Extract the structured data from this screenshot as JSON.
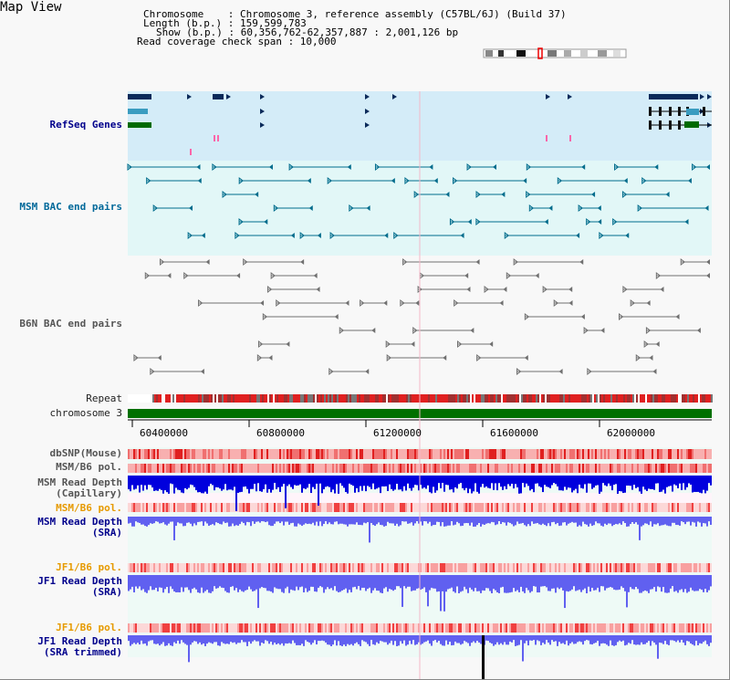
{
  "title": "Map View",
  "info": {
    "chromosome": "Chromosome    : Chromosome 3, reference assembly (C57BL/6J) (Build 37)",
    "length": "Length (b.p.) : 159,599,783",
    "show": "Show (b.p.) : 60,356,762-62,357,887 : 2,001,126 bp",
    "read_coverage": "Read coverage check span : 10,000"
  },
  "labels": {
    "refseq": "RefSeq Genes",
    "msm_bac": "MSM BAC end pairs",
    "b6n_bac": "B6N BAC end pairs",
    "repeat": "Repeat",
    "chromosome": "chromosome 3",
    "dbsnp": "dbSNP(Mouse)",
    "msm_b6_pol_1": "MSM/B6 pol.",
    "msm_read_depth_cap_1": "MSM Read Depth",
    "msm_read_depth_cap_2": "(Capillary)",
    "msm_b6_pol_2": "MSM/B6 pol.",
    "msm_read_depth_sra_1": "MSM Read Depth",
    "msm_read_depth_sra_2": "(SRA)",
    "jf1_b6_pol_1": "JF1/B6 pol.",
    "jf1_read_depth_1": "JF1 Read Depth",
    "jf1_read_depth_2": "(SRA)",
    "jf1_b6_pol_2": "JF1/B6 pol.",
    "jf1_read_depth_trim_1": "JF1 Read Depth",
    "jf1_read_depth_trim_2": "(SRA trimmed)"
  },
  "axis_ticks": [
    "60400000",
    "60800000",
    "61200000",
    "61600000",
    "62000000"
  ],
  "colors": {
    "refseq_bg": "#d4ecf8",
    "bac_bg": "#e2f7f7",
    "gene_dark": "#0a2a5a",
    "gene_teal": "#3a9cc0",
    "gene_green": "#006a00",
    "msm_feature": "#006c8c",
    "b6n_feature": "#707070",
    "chromosome_bar": "#007000",
    "depth_dark_blue": "#0000dd",
    "depth_light_blue": "#6060f0",
    "pol_red": "#e83030"
  }
}
